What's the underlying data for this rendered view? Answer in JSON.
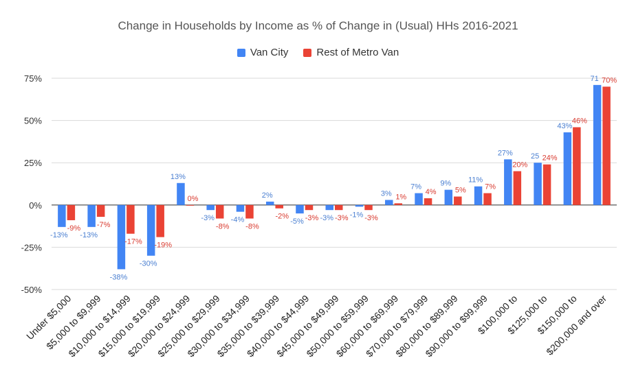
{
  "chart_data": {
    "type": "bar",
    "title": "Change in Households by Income as % of Change in (Usual) HHs 2016-2021",
    "xlabel": "",
    "ylabel": "",
    "ylim": [
      -50,
      75
    ],
    "yticks": [
      "-50%",
      "-25%",
      "0%",
      "25%",
      "50%",
      "75%"
    ],
    "yticks_values": [
      -50,
      -25,
      0,
      25,
      50,
      75
    ],
    "grid": true,
    "legend_position": "top",
    "categories": [
      "Under $5,000",
      "$5,000 to $9,999",
      "$10,000 to $14,999",
      "$15,000 to $19,999",
      "$20,000 to $24,999",
      "$25,000 to $29,999",
      "$30,000 to $34,999",
      "$35,000 to $39,999",
      "$40,000 to $44,999",
      "$45,000 to $49,999",
      "$50,000 to $59,999",
      "$60,000 to $69,999",
      "$70,000 to $79,999",
      "$80,000 to $89,999",
      "$90,000 to $99,999",
      "$100,000 to",
      "$125,000 to",
      "$150,000 to",
      "$200,000 and over"
    ],
    "series": [
      {
        "name": "Van City",
        "color": "#4285f4",
        "label_color": "#4a7fd1",
        "values": [
          -13,
          -13,
          -38,
          -30,
          13,
          -3,
          -4,
          2,
          -5,
          -3,
          -1,
          3,
          7,
          9,
          11,
          27,
          25,
          43,
          71
        ],
        "labels": [
          "-13%",
          "-13%",
          "-38%",
          "-30%",
          "13%",
          "-3%",
          "-4%",
          "2%",
          "-5%",
          "-3%",
          "-1%",
          "3%",
          "7%",
          "9%",
          "11%",
          "27%",
          "25",
          "43%",
          "71"
        ]
      },
      {
        "name": "Rest of Metro Van",
        "color": "#ea4335",
        "label_color": "#d93b30",
        "values": [
          -9,
          -7,
          -17,
          -19,
          0,
          -8,
          -8,
          -2,
          -3,
          -3,
          -3,
          1,
          4,
          5,
          7,
          20,
          24,
          46,
          70
        ],
        "labels": [
          "-9%",
          "-7%",
          "-17%",
          "-19%",
          "0%",
          "-8%",
          "-8%",
          "-2%",
          "-3%",
          "-3%",
          "-3%",
          "1%",
          "4%",
          "5%",
          "7%",
          "20%",
          "24%",
          "46%",
          "70%"
        ]
      }
    ]
  }
}
